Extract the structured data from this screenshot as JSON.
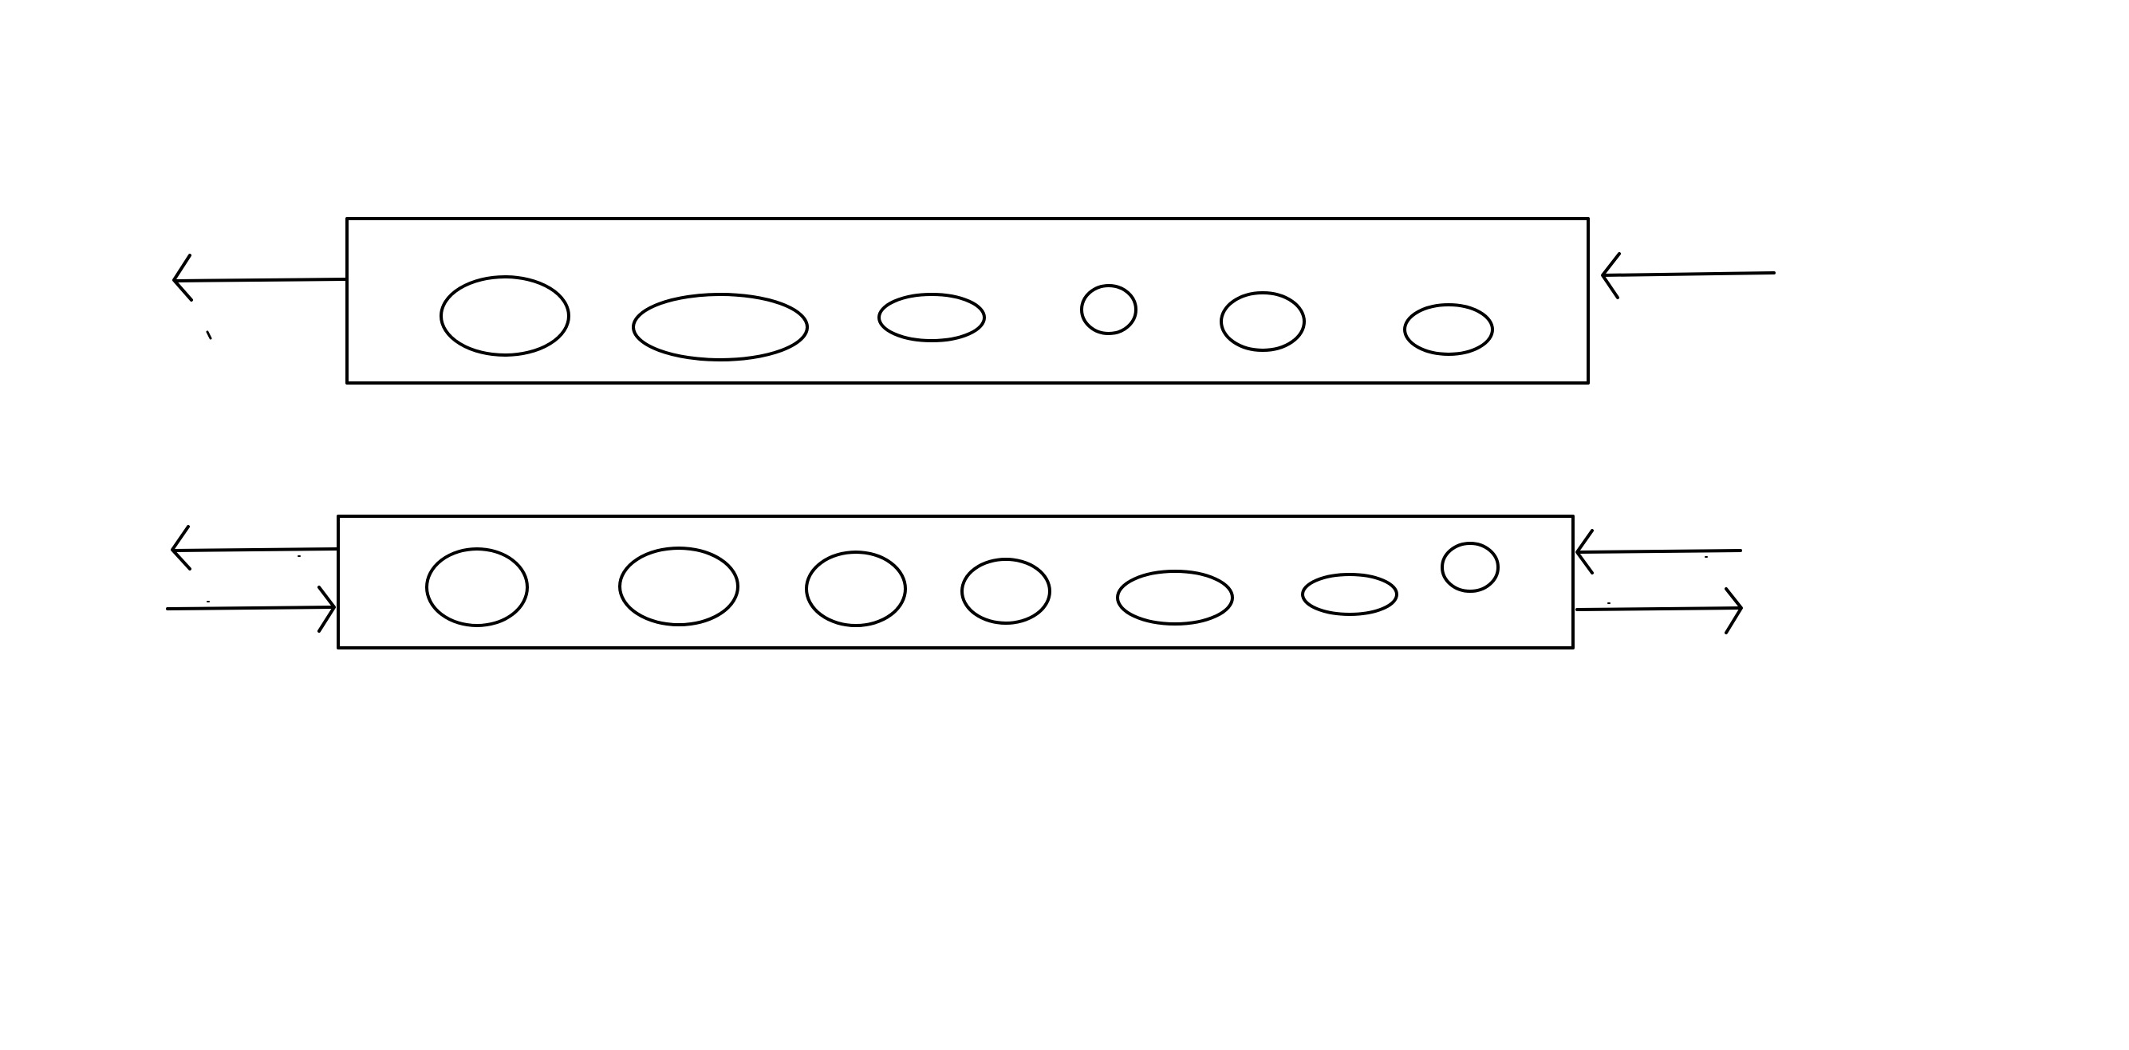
{
  "style": {
    "background": "#ffffff",
    "stroke": "#000000"
  },
  "diagram": {
    "panels": [
      {
        "name": "top-panel",
        "flow_arrows": [
          {
            "side": "left",
            "direction": "outward"
          },
          {
            "side": "right",
            "direction": "inward"
          }
        ],
        "bubble_count": 6
      },
      {
        "name": "bottom-panel",
        "flow_arrows": [
          {
            "side": "left",
            "direction": "outward"
          },
          {
            "side": "left",
            "direction": "inward"
          },
          {
            "side": "right",
            "direction": "inward"
          },
          {
            "side": "right",
            "direction": "outward"
          }
        ],
        "bubble_count": 7
      }
    ]
  }
}
